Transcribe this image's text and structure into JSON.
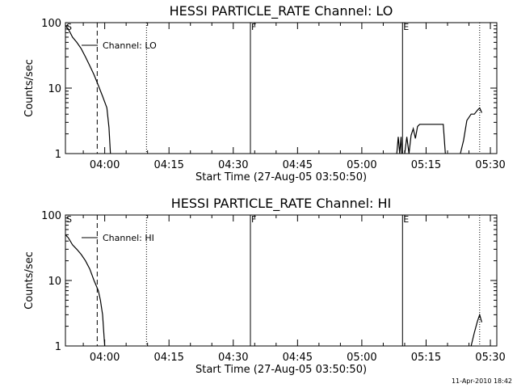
{
  "footer_text": "11-Apr-2010 18:42",
  "chart_data": [
    {
      "type": "line",
      "title": "HESSI PARTICLE_RATE Channel: LO",
      "xlabel": "Start Time (27-Aug-05 03:50:50)",
      "ylabel": "Counts/sec",
      "y_scale": "log",
      "ylim": [
        1,
        100
      ],
      "xlim": [
        "03:50:50",
        "05:31:30"
      ],
      "x_ticks": [
        "04:00",
        "04:15",
        "04:30",
        "04:45",
        "05:00",
        "05:15",
        "05:30"
      ],
      "y_ticks": [
        "1",
        "10",
        "100"
      ],
      "legend": "Channel: LO",
      "legend_placement": "top-left",
      "markers": [
        {
          "label": "S",
          "time": "03:50:50",
          "style": "solid"
        },
        {
          "label": "",
          "time": "03:58:15",
          "style": "dashed"
        },
        {
          "label": "",
          "time": "04:09:45",
          "style": "dotted"
        },
        {
          "label": "F",
          "time": "04:34:00",
          "style": "solid"
        },
        {
          "label": "E",
          "time": "05:09:30",
          "style": "solid"
        },
        {
          "label": "",
          "time": "05:27:30",
          "style": "dotted"
        }
      ],
      "series": [
        {
          "segments": [
            {
              "x": [
                "03:50:50",
                "03:51:30",
                "03:52:30",
                "03:53:30",
                "03:54:30",
                "03:55:30",
                "03:56:30",
                "03:57:30",
                "03:58:30",
                "03:59:30",
                "04:00:30",
                "04:01:00",
                "04:01:20"
              ],
              "y": [
                90,
                80,
                60,
                50,
                40,
                30,
                22,
                16,
                11,
                7.5,
                5,
                2.5,
                1
              ]
            },
            {
              "x": [
                "05:08:10",
                "05:08:30",
                "05:08:50",
                "05:09:10",
                "05:09:20"
              ],
              "y": [
                1,
                1.8,
                1,
                1.8,
                1
              ]
            },
            {
              "x": [
                "05:10:00",
                "05:10:30",
                "05:11:00",
                "05:11:30",
                "05:12:00",
                "05:12:30",
                "05:13:00",
                "05:13:30",
                "05:14:00",
                "05:14:30",
                "05:15:00",
                "05:15:30",
                "05:16:00",
                "05:16:30",
                "05:17:00",
                "05:17:30",
                "05:18:00",
                "05:18:30",
                "05:19:00",
                "05:19:30"
              ],
              "y": [
                1,
                1.8,
                1,
                1.9,
                2.4,
                1.7,
                2.6,
                2.8,
                2.8,
                2.8,
                2.8,
                2.8,
                2.8,
                2.8,
                2.8,
                2.8,
                2.8,
                2.8,
                2.8,
                1
              ]
            },
            {
              "x": [
                "05:23:00",
                "05:23:45",
                "05:24:30",
                "05:25:30",
                "05:26:15",
                "05:27:00",
                "05:27:30",
                "05:28:00"
              ],
              "y": [
                1,
                1.6,
                3.2,
                4.0,
                4.0,
                4.6,
                5.0,
                4.2
              ]
            }
          ]
        }
      ]
    },
    {
      "type": "line",
      "title": "HESSI PARTICLE_RATE Channel: HI",
      "xlabel": "Start Time (27-Aug-05 03:50:50)",
      "ylabel": "Counts/sec",
      "y_scale": "log",
      "ylim": [
        1,
        100
      ],
      "xlim": [
        "03:50:50",
        "05:31:30"
      ],
      "x_ticks": [
        "04:00",
        "04:15",
        "04:30",
        "04:45",
        "05:00",
        "05:15",
        "05:30"
      ],
      "y_ticks": [
        "1",
        "10",
        "100"
      ],
      "legend": "Channel: HI",
      "legend_placement": "top-left",
      "markers": [
        {
          "label": "S",
          "time": "03:50:50",
          "style": "solid"
        },
        {
          "label": "",
          "time": "03:58:15",
          "style": "dashed"
        },
        {
          "label": "",
          "time": "04:09:45",
          "style": "dotted"
        },
        {
          "label": "F",
          "time": "04:34:00",
          "style": "solid"
        },
        {
          "label": "E",
          "time": "05:09:30",
          "style": "solid"
        },
        {
          "label": "",
          "time": "05:27:30",
          "style": "dotted"
        }
      ],
      "series": [
        {
          "segments": [
            {
              "x": [
                "03:50:50",
                "03:51:30",
                "03:52:30",
                "03:53:30",
                "03:54:30",
                "03:55:30",
                "03:56:30",
                "03:57:30",
                "03:58:30",
                "03:59:00",
                "03:59:30",
                "04:00:00"
              ],
              "y": [
                50,
                45,
                35,
                30,
                25,
                20,
                15,
                10,
                7,
                5,
                3,
                1
              ]
            },
            {
              "x": [
                "05:25:30",
                "05:26:15",
                "05:27:00",
                "05:27:30",
                "05:28:00"
              ],
              "y": [
                1,
                1.6,
                2.4,
                3.0,
                2.3
              ]
            }
          ]
        }
      ]
    }
  ]
}
